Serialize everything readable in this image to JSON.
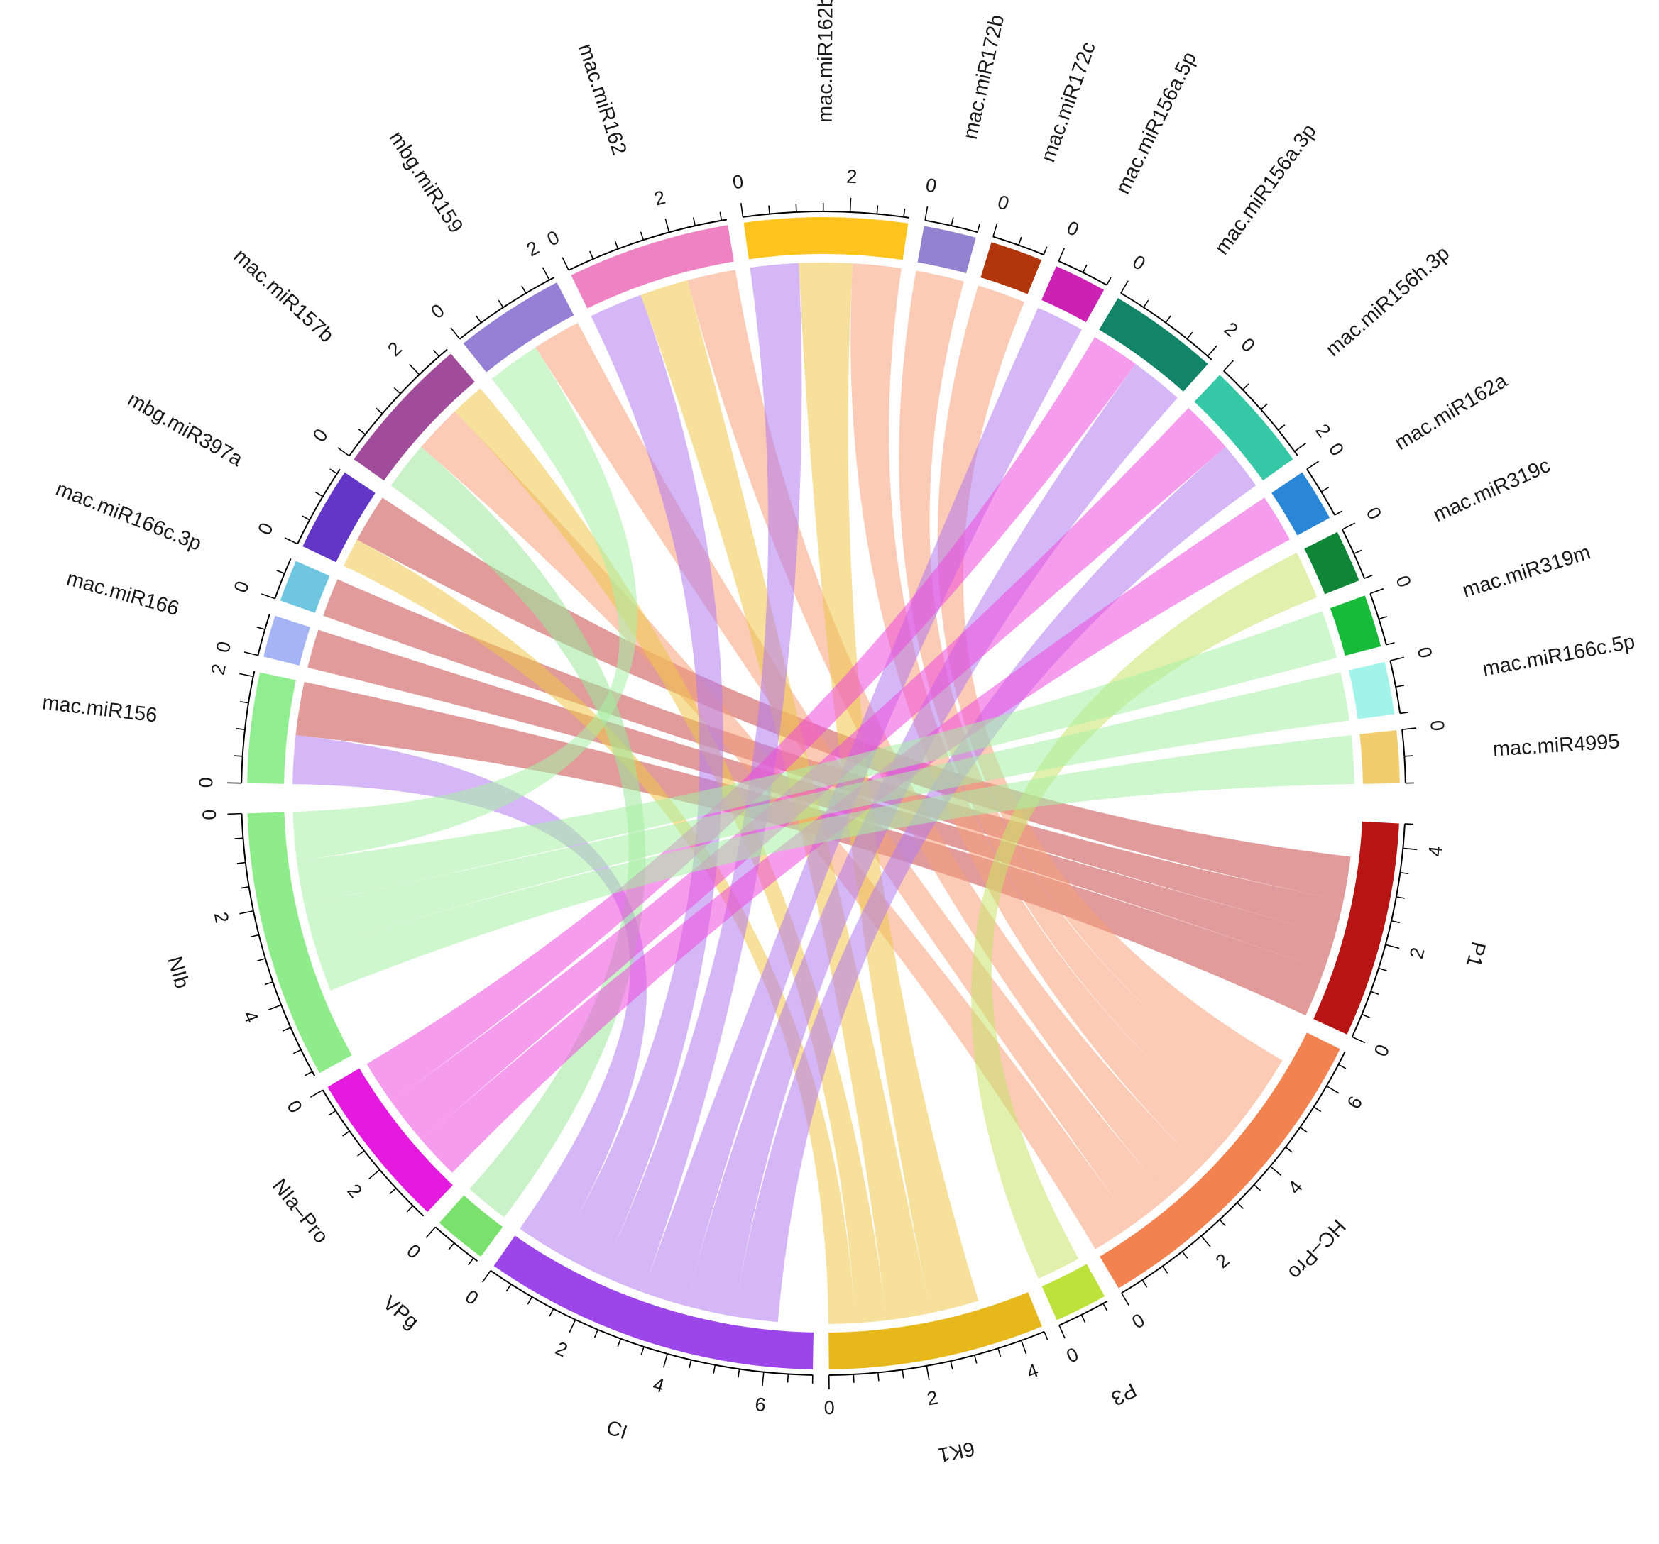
{
  "chart_data": {
    "type": "chord",
    "title": "",
    "sectors_mirna": [
      {
        "name": "mac.miR156",
        "value": 2.1,
        "color": "#90EE90"
      },
      {
        "name": "mac.miR166",
        "value": 0.8,
        "color": "#A4B4F4"
      },
      {
        "name": "mac.miR166c.3p",
        "value": 0.8,
        "color": "#6EC6E0"
      },
      {
        "name": "mbg.miR397a",
        "value": 1.6,
        "color": "#6236C6"
      },
      {
        "name": "mac.miR157b",
        "value": 2.7,
        "color": "#A04C9A"
      },
      {
        "name": "mbg.miR159",
        "value": 2.1,
        "color": "#9580D6"
      },
      {
        "name": "mac.miR162",
        "value": 3.1,
        "color": "#EE82C2"
      },
      {
        "name": "mac.miR162b",
        "value": 3.1,
        "color": "#FFC31E"
      },
      {
        "name": "mac.miR172b",
        "value": 1.0,
        "color": "#9382D0"
      },
      {
        "name": "mac.miR172c",
        "value": 1.0,
        "color": "#B2360C"
      },
      {
        "name": "mac.miR156a.5p",
        "value": 1.0,
        "color": "#CC22B4"
      },
      {
        "name": "mac.miR156a.3p",
        "value": 2.1,
        "color": "#128468"
      },
      {
        "name": "mac.miR156h.3p",
        "value": 2.1,
        "color": "#36C8A6"
      },
      {
        "name": "mac.miR162a",
        "value": 1.0,
        "color": "#2A86D6"
      },
      {
        "name": "mac.miR319c",
        "value": 1.0,
        "color": "#0E8636"
      },
      {
        "name": "mac.miR319m",
        "value": 1.0,
        "color": "#18BA3A"
      },
      {
        "name": "mac.miR166c.5p",
        "value": 1.0,
        "color": "#A2F4EA"
      },
      {
        "name": "mac.miR4995",
        "value": 1.0,
        "color": "#F2CD6E"
      }
    ],
    "sectors_gene": [
      {
        "name": "P1",
        "value": 4.5,
        "color": "#B81414"
      },
      {
        "name": "HC–Pro",
        "value": 6.8,
        "color": "#F28250"
      },
      {
        "name": "P3",
        "value": 1.1,
        "color": "#BEE23C"
      },
      {
        "name": "6K1",
        "value": 4.5,
        "color": "#E6B81E"
      },
      {
        "name": "CI",
        "value": 7.0,
        "color": "#9C46EA"
      },
      {
        "name": "VPg",
        "value": 1.1,
        "color": "#7AE06E"
      },
      {
        "name": "NIa–Pro",
        "value": 3.3,
        "color": "#E41ADE"
      },
      {
        "name": "NIb",
        "value": 5.6,
        "color": "#8EEC8A"
      }
    ],
    "links": [
      {
        "source": "mac.miR156",
        "target": "CI",
        "value": 1.0
      },
      {
        "source": "mac.miR156",
        "target": "P1",
        "value": 1.1
      },
      {
        "source": "mac.miR166",
        "target": "P1",
        "value": 0.8
      },
      {
        "source": "mac.miR166c.3p",
        "target": "P1",
        "value": 0.8
      },
      {
        "source": "mbg.miR397a",
        "target": "6K1",
        "value": 0.6
      },
      {
        "source": "mbg.miR397a",
        "target": "P1",
        "value": 1.0
      },
      {
        "source": "mac.miR157b",
        "target": "VPg",
        "value": 1.0
      },
      {
        "source": "mac.miR157b",
        "target": "HC–Pro",
        "value": 1.0
      },
      {
        "source": "mac.miR157b",
        "target": "6K1",
        "value": 0.7
      },
      {
        "source": "mbg.miR159",
        "target": "NIb",
        "value": 1.1
      },
      {
        "source": "mbg.miR159",
        "target": "HC–Pro",
        "value": 1.0
      },
      {
        "source": "mac.miR162",
        "target": "CI",
        "value": 1.1
      },
      {
        "source": "mac.miR162",
        "target": "6K1",
        "value": 1.0
      },
      {
        "source": "mac.miR162",
        "target": "HC–Pro",
        "value": 1.0
      },
      {
        "source": "mac.miR162b",
        "target": "CI",
        "value": 1.0
      },
      {
        "source": "mac.miR162b",
        "target": "6K1",
        "value": 1.1
      },
      {
        "source": "mac.miR162b",
        "target": "HC–Pro",
        "value": 1.0
      },
      {
        "source": "mac.miR172b",
        "target": "HC–Pro",
        "value": 1.0
      },
      {
        "source": "mac.miR172c",
        "target": "HC–Pro",
        "value": 1.0
      },
      {
        "source": "mac.miR156a.5p",
        "target": "CI",
        "value": 1.0
      },
      {
        "source": "mac.miR156a.3p",
        "target": "NIa–Pro",
        "value": 1.0
      },
      {
        "source": "mac.miR156a.3p",
        "target": "CI",
        "value": 1.1
      },
      {
        "source": "mac.miR156h.3p",
        "target": "NIa–Pro",
        "value": 1.1
      },
      {
        "source": "mac.miR156h.3p",
        "target": "CI",
        "value": 1.0
      },
      {
        "source": "mac.miR162a",
        "target": "NIa–Pro",
        "value": 1.0
      },
      {
        "source": "mac.miR319c",
        "target": "P3",
        "value": 1.0
      },
      {
        "source": "mac.miR319m",
        "target": "NIb",
        "value": 1.0
      },
      {
        "source": "mac.miR166c.5p",
        "target": "NIb",
        "value": 1.0
      },
      {
        "source": "mac.miR4995",
        "target": "NIb",
        "value": 1.0
      },
      {
        "source": "mac.miR4995",
        "target": "CI",
        "value": 0.0
      }
    ],
    "tick_step": 2,
    "grid": false,
    "legend": "none"
  }
}
